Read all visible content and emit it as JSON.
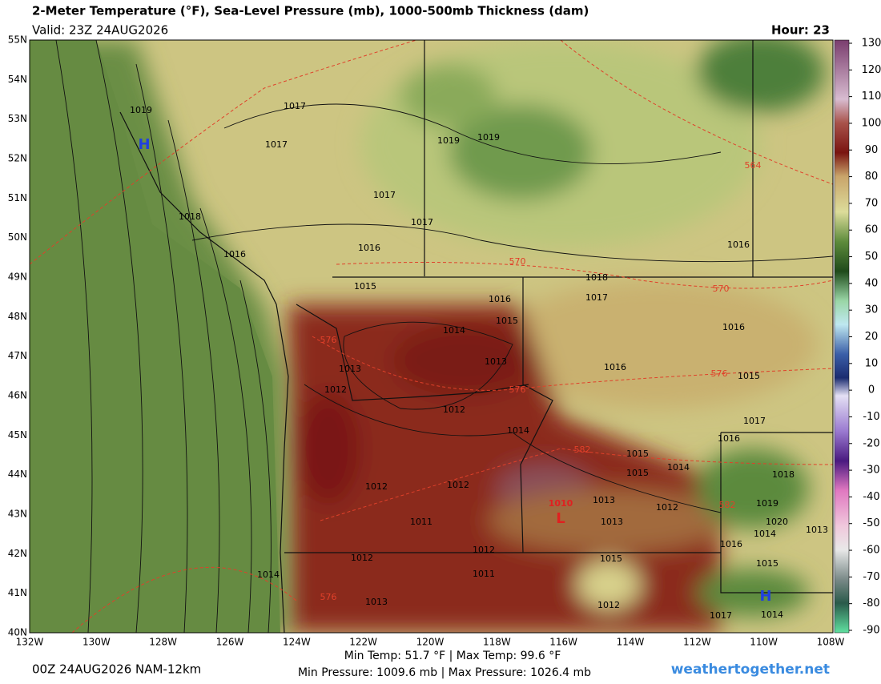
{
  "header": {
    "title": "2-Meter Temperature (°F), Sea-Level Pressure (mb), 1000-500mb Thickness (dam)",
    "valid": "Valid: 23Z 24AUG2026",
    "hour": "Hour: 23"
  },
  "map": {
    "lat_labels": [
      "55N",
      "54N",
      "53N",
      "52N",
      "51N",
      "50N",
      "49N",
      "48N",
      "47N",
      "46N",
      "45N",
      "44N",
      "43N",
      "42N",
      "41N",
      "40N"
    ],
    "lon_labels": [
      "132W",
      "130W",
      "128W",
      "126W",
      "124W",
      "122W",
      "120W",
      "118W",
      "116W",
      "114W",
      "112W",
      "110W",
      "108W"
    ],
    "contour_labels": [
      "1017",
      "1017",
      "1019",
      "1019",
      "1017",
      "1017",
      "1018",
      "1016",
      "1016",
      "1015",
      "1016",
      "1017",
      "1018",
      "1016",
      "1014",
      "1015",
      "1016",
      "1013",
      "1013",
      "1016",
      "1015",
      "1012",
      "1012",
      "1014",
      "1017",
      "1016",
      "1015",
      "1014",
      "1015",
      "1018",
      "1012",
      "1012",
      "1013",
      "1012",
      "1019",
      "1020",
      "1014",
      "1013",
      "1011",
      "1013",
      "1016",
      "1012",
      "1015",
      "1012",
      "1015",
      "1014",
      "1011",
      "1013",
      "1012",
      "1017",
      "1014",
      "1019"
    ],
    "thickness_labels": [
      "564",
      "570",
      "570",
      "576",
      "576",
      "576",
      "582",
      "582",
      "576"
    ],
    "pressure_centers": [
      "1010",
      "L",
      "H",
      "H"
    ]
  },
  "colorbar": {
    "ticks": [
      130,
      120,
      110,
      100,
      90,
      80,
      70,
      60,
      50,
      40,
      30,
      20,
      10,
      0,
      -10,
      -20,
      -30,
      -40,
      -50,
      -60,
      -70,
      -80,
      -90
    ]
  },
  "footer": {
    "run": "00Z 24AUG2026 NAM-12km",
    "temp": "Min Temp:  51.7 °F | Max Temp:  99.6 °F",
    "pressure": "Min Pressure: 1009.6 mb | Max Pressure: 1026.4 mb",
    "site": "weathertogether.net"
  }
}
